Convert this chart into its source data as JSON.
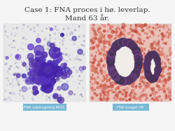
{
  "title_line1": "Case 1: FNA proces i hø. leverlap.",
  "title_line2": "Mand 63 år.",
  "title_fontsize": 7.5,
  "title_color": "#333333",
  "bg_color": "#f5f5f5",
  "label1_text": "FNA udstrygning MGG",
  "label2_text": "FNA koagel HE",
  "label_bg_color": "#7ab8d4",
  "label_text_color": "#ffffff",
  "label_fontsize": 3.8,
  "left_image_bg": "#e8e8e8",
  "right_image_bg": "#e8c0b8",
  "left_blob_color": "#5533aa",
  "left_blob_color2": "#3322aa",
  "right_blob_color": "#553366",
  "right_red_color": "#cc6655"
}
